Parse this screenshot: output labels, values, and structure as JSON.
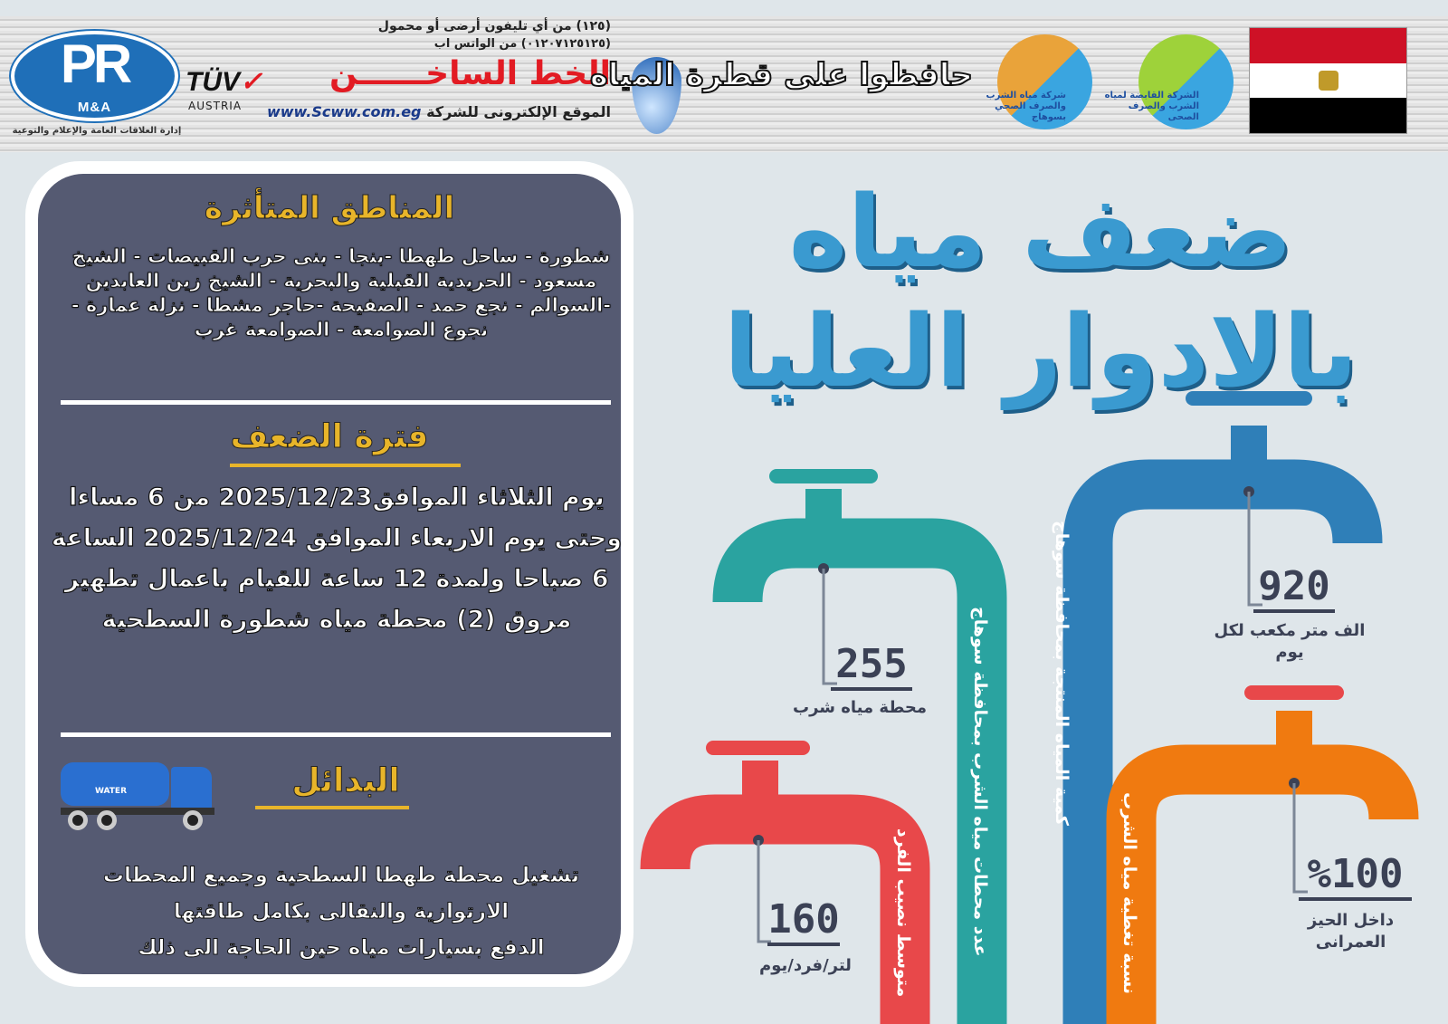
{
  "header": {
    "pr_logo": {
      "letters": "PR",
      "sub_letters": "M&A",
      "caption": "إدارة العلاقات العامة والإعلام والتوعية"
    },
    "tuv": {
      "brand": "TÜV",
      "country": "AUSTRIA"
    },
    "hotline": {
      "top_line": "(١٢٥) من أي تليفون أرضى أو محمول",
      "title": "الخط الساخــــــن",
      "whatsapp": "(٠١٢٠٧١٢٥١٢٥) من الواتس اب",
      "site_label": "الموقع الإلكترونى للشركة",
      "site_url": "www.Scww.com.eg"
    },
    "slogan": "حافظوا على قطرة المياه",
    "sohag_logo_text": "شركة مياه الشرب والصرف الصحي بسوهاج",
    "holding_logo_text": "الشركة القابضة لمياه الشرب والصرف الصحى",
    "flag_colors": [
      "#ce1126",
      "#ffffff",
      "#000000"
    ]
  },
  "left_panel": {
    "areas_title": "المناطق المتأثرة",
    "areas_text": "شطورة - ساحل طهطا -بنجا - بنى حرب القبيصات - الشيخ مسعود - الحريدية القبلية والبحرية - الشيخ زين العابدين -السوالم - نجع حمد - الصفيحة -حاجر مشطا - نزلة عمارة - نجوع الصوامعة - الصوامعة غرب",
    "period_title": "فترة الضعف",
    "period_text": "يوم الثلاثاء الموافق2025/12/23 من 6 مساءا وحتى يوم الاربعاء الموافق 2025/12/24 الساعة 6 صباحا ولمدة 12 ساعة للقيام باعمال تطهير مروق (2) محطة مياه شطورة السطحية",
    "alternatives_title": "البدائل",
    "truck_label": "WATER",
    "alternatives_lines": [
      "تشغيل محطة طهطا السطحية وجميع المحطات",
      "الارتوازية والنقالى بكامل طاقتها",
      "الدفع بسيارات مياه حين الحاجة الى ذلك"
    ]
  },
  "main_title": "ضعف مياه بالادوار العليا",
  "stats": [
    {
      "label": "كمية المياه المنتجة بمحافظة سوهاج",
      "value": "920",
      "unit": "الف متر مكعب لكل يوم",
      "color": "#2f7fb8"
    },
    {
      "label": "عدد محطات مياه الشرب بمحافظة سوهاج",
      "value": "255",
      "unit": "محطة مياه شرب",
      "color": "#2aa3a0"
    },
    {
      "label": "نسبة تغطية مياه الشرب",
      "value": "%100",
      "unit": "داخل الحيز العمرانى",
      "color": "#f07a10"
    },
    {
      "label": "متوسط نصيب الفرد",
      "value": "160",
      "unit": "لتر/فرد/يوم",
      "color": "#e8484a"
    }
  ]
}
